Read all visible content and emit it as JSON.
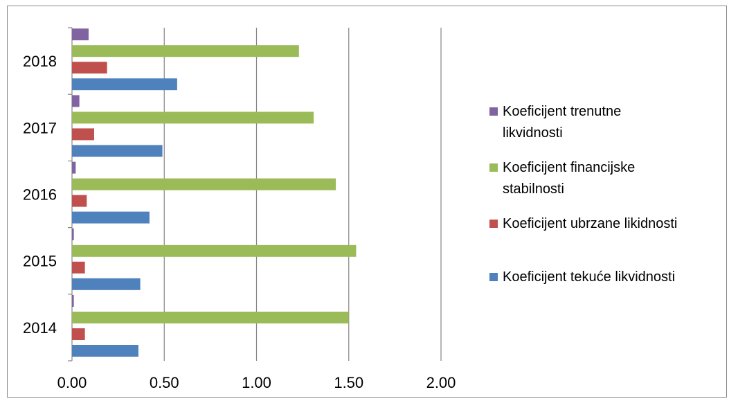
{
  "chart_data": {
    "type": "bar",
    "orientation": "horizontal",
    "categories": [
      "2014",
      "2015",
      "2016",
      "2017",
      "2018"
    ],
    "series": [
      {
        "name": "Koeficijent tekuće likvidnosti",
        "color": "#4f81bd",
        "values": [
          0.36,
          0.37,
          0.42,
          0.49,
          0.57
        ]
      },
      {
        "name": "Koeficijent ubrzane likidnosti",
        "color": "#c0504d",
        "values": [
          0.07,
          0.07,
          0.08,
          0.12,
          0.19
        ]
      },
      {
        "name": "Koeficijent financijske stabilnosti",
        "color": "#9bbb59",
        "values": [
          1.5,
          1.54,
          1.43,
          1.31,
          1.23
        ]
      },
      {
        "name": "Koeficijent trenutne likvidnosti",
        "color": "#8064a2",
        "values": [
          0.01,
          0.01,
          0.02,
          0.04,
          0.09
        ]
      }
    ],
    "xlim": [
      0,
      2
    ],
    "xticks": [
      "0.00",
      "0.50",
      "1.00",
      "1.50",
      "2.00"
    ],
    "grid": "vertical",
    "legend_position": "right",
    "legend_items": [
      {
        "lines": [
          "Koeficijent trenutne",
          "likvidnosti"
        ],
        "color": "#8064a2"
      },
      {
        "lines": [
          "Koeficijent financijske",
          "stabilnosti"
        ],
        "color": "#9bbb59"
      },
      {
        "lines": [
          "Koeficijent ubrzane likidnosti"
        ],
        "color": "#c0504d"
      },
      {
        "lines": [
          "Koeficijent tekuće likvidnosti"
        ],
        "color": "#4f81bd"
      }
    ]
  }
}
